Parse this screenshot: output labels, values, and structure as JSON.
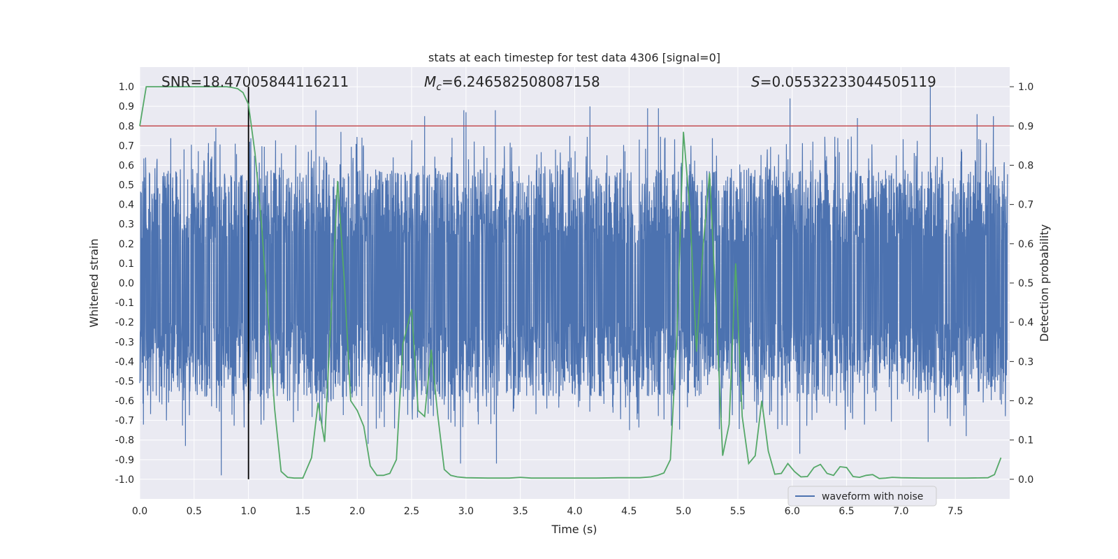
{
  "chart_data": {
    "type": "line",
    "title": "stats at each timestep for test data 4306 [signal=0]",
    "xlabel": "Time (s)",
    "ylabel": "Whitened strain",
    "y2label": "Detection probability",
    "xlim": [
      0.0,
      8.0
    ],
    "ylim": [
      -1.1,
      1.1
    ],
    "y2lim": [
      -0.05,
      1.05
    ],
    "xticks": [
      "0.0",
      "0.5",
      "1.0",
      "1.5",
      "2.0",
      "2.5",
      "3.0",
      "3.5",
      "4.0",
      "4.5",
      "5.0",
      "5.5",
      "6.0",
      "6.5",
      "7.0",
      "7.5"
    ],
    "yticks": [
      "1.0",
      "0.9",
      "0.8",
      "0.7",
      "0.6",
      "0.5",
      "0.4",
      "0.3",
      "0.2",
      "0.1",
      "0.0",
      "-0.1",
      "-0.2",
      "-0.3",
      "-0.4",
      "-0.5",
      "-0.6",
      "-0.7",
      "-0.8",
      "-0.9",
      "-1.0"
    ],
    "y2ticks": [
      "1.0",
      "0.9",
      "0.8",
      "0.7",
      "0.6",
      "0.5",
      "0.4",
      "0.3",
      "0.2",
      "0.1",
      "0.0"
    ],
    "grid": true,
    "legend": {
      "placement": "lower-right",
      "entries": [
        "waveform with noise"
      ]
    },
    "annotations": {
      "snr": "SNR=18.47005844116211",
      "mc_symbol": "M",
      "mc_sub": "c",
      "mc_value": "=6.246582508087158",
      "s_symbol": "S",
      "s_value": "=0.05532233044505119"
    },
    "threshold": {
      "axis": "right",
      "value": 0.9,
      "color": "#c44e52"
    },
    "marker_line": {
      "x": 1.0,
      "color": "#000000"
    },
    "colors": {
      "waveform": "#4c72b0",
      "probability": "#55a868",
      "background": "#eaeaf2"
    },
    "series": [
      {
        "name": "waveform with noise",
        "axis": "left",
        "kind": "noisy-waveform",
        "amplitude_typical": 0.4,
        "peak_max": 1.0,
        "peak_min": -0.99,
        "spikes": [
          {
            "x": 0.75,
            "y": -0.98
          },
          {
            "x": 0.42,
            "y": -0.83
          },
          {
            "x": 0.7,
            "y": 0.79
          },
          {
            "x": 2.98,
            "y": 0.88
          },
          {
            "x": 2.95,
            "y": -0.92
          },
          {
            "x": 3.27,
            "y": 0.88
          },
          {
            "x": 3.28,
            "y": -0.92
          },
          {
            "x": 4.14,
            "y": 0.9
          },
          {
            "x": 4.67,
            "y": 0.89
          },
          {
            "x": 4.77,
            "y": 0.89
          },
          {
            "x": 5.98,
            "y": 0.94
          },
          {
            "x": 7.27,
            "y": 1.0
          },
          {
            "x": 7.7,
            "y": 0.86
          },
          {
            "x": 7.85,
            "y": 0.85
          },
          {
            "x": 1.62,
            "y": 0.88
          },
          {
            "x": 2.62,
            "y": 0.85
          },
          {
            "x": 3.0,
            "y": 0.87
          },
          {
            "x": 2.1,
            "y": -0.82
          },
          {
            "x": 6.07,
            "y": -0.87
          },
          {
            "x": 7.25,
            "y": -0.81
          },
          {
            "x": 1.85,
            "y": 0.77
          },
          {
            "x": 6.6,
            "y": 0.84
          },
          {
            "x": 7.6,
            "y": -0.78
          }
        ]
      },
      {
        "name": "Detection probability",
        "axis": "right",
        "x": [
          0.0,
          0.06,
          0.12,
          0.2,
          0.3,
          0.4,
          0.5,
          0.6,
          0.7,
          0.8,
          0.85,
          0.9,
          0.95,
          1.0,
          1.06,
          1.12,
          1.18,
          1.24,
          1.3,
          1.36,
          1.42,
          1.5,
          1.58,
          1.64,
          1.7,
          1.76,
          1.82,
          1.88,
          1.94,
          2.0,
          2.06,
          2.12,
          2.18,
          2.24,
          2.3,
          2.36,
          2.42,
          2.5,
          2.56,
          2.62,
          2.68,
          2.74,
          2.8,
          2.86,
          2.92,
          3.0,
          3.2,
          3.4,
          3.5,
          3.6,
          3.8,
          4.0,
          4.2,
          4.4,
          4.6,
          4.7,
          4.76,
          4.82,
          4.88,
          4.94,
          5.0,
          5.06,
          5.12,
          5.18,
          5.24,
          5.3,
          5.36,
          5.42,
          5.48,
          5.54,
          5.6,
          5.66,
          5.72,
          5.78,
          5.84,
          5.9,
          5.96,
          6.02,
          6.08,
          6.14,
          6.2,
          6.26,
          6.32,
          6.38,
          6.44,
          6.5,
          6.56,
          6.62,
          6.68,
          6.74,
          6.8,
          6.86,
          6.92,
          7.0,
          7.2,
          7.4,
          7.6,
          7.8,
          7.86,
          7.92
        ],
        "y": [
          0.9,
          1.0,
          1.0,
          1.0,
          1.0,
          1.0,
          1.0,
          1.0,
          1.0,
          1.0,
          0.998,
          0.995,
          0.985,
          0.955,
          0.83,
          0.65,
          0.42,
          0.18,
          0.02,
          0.005,
          0.003,
          0.003,
          0.055,
          0.195,
          0.095,
          0.42,
          0.76,
          0.51,
          0.2,
          0.175,
          0.135,
          0.034,
          0.01,
          0.01,
          0.015,
          0.05,
          0.345,
          0.433,
          0.175,
          0.16,
          0.33,
          0.165,
          0.025,
          0.01,
          0.006,
          0.004,
          0.003,
          0.003,
          0.005,
          0.003,
          0.003,
          0.003,
          0.003,
          0.004,
          0.004,
          0.006,
          0.01,
          0.016,
          0.05,
          0.37,
          0.885,
          0.68,
          0.325,
          0.59,
          0.78,
          0.44,
          0.06,
          0.14,
          0.55,
          0.16,
          0.04,
          0.06,
          0.2,
          0.072,
          0.013,
          0.015,
          0.04,
          0.02,
          0.006,
          0.007,
          0.03,
          0.038,
          0.015,
          0.01,
          0.032,
          0.03,
          0.007,
          0.005,
          0.01,
          0.012,
          0.002,
          0.003,
          0.005,
          0.004,
          0.003,
          0.003,
          0.003,
          0.004,
          0.012,
          0.055
        ]
      }
    ]
  }
}
